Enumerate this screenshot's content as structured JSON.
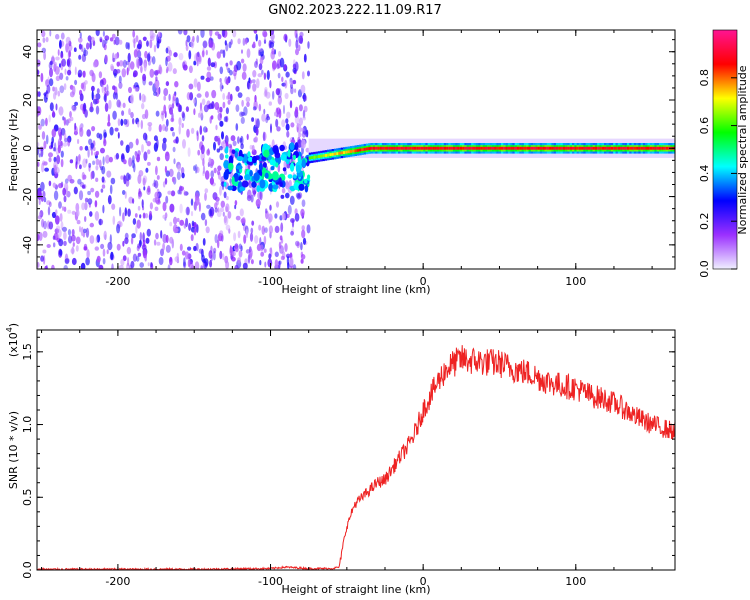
{
  "title": "GN02.2023.222.11.09.R17",
  "chart_data": [
    {
      "type": "heatmap",
      "xlabel": "Height of straight line (km)",
      "ylabel": "Frequency (Hz)",
      "xlim": [
        -253,
        165
      ],
      "ylim": [
        -50,
        49
      ],
      "xticks": [
        -200,
        -100,
        0,
        100
      ],
      "xtick_labels": [
        "-200",
        "-100",
        "0",
        "100"
      ],
      "yticks": [
        -40,
        -20,
        0,
        20,
        40
      ],
      "ytick_labels": [
        "-40",
        "-20",
        "0",
        "20",
        "40"
      ],
      "colorbar": {
        "label": "Normalized spectral amplitude",
        "range": [
          0,
          1
        ],
        "ticks": [
          0.0,
          0.2,
          0.4,
          0.6,
          0.8
        ],
        "tick_labels": [
          "0.0",
          "0.2",
          "0.4",
          "0.6",
          "0.8"
        ],
        "colors": [
          "#f0f0ff",
          "#9b30ff",
          "#0000ff",
          "#00ffff",
          "#00ff00",
          "#ffff00",
          "#ff0000",
          "#ff1493"
        ]
      },
      "features": [
        {
          "region": "noise",
          "x_range": [
            -253,
            -75
          ],
          "freq_range": [
            -50,
            49
          ],
          "amplitude": 0.1
        },
        {
          "region": "onset",
          "x_range": [
            -130,
            -75
          ],
          "freq_center": -8,
          "amplitude": 0.35
        },
        {
          "region": "signal-line",
          "x_range": [
            -75,
            165
          ],
          "freq_center": 0,
          "amplitude": 0.85
        }
      ],
      "grid": false
    },
    {
      "type": "line",
      "xlabel": "Height of straight line (km)",
      "ylabel": "SNR (10 * v/v)",
      "y_multiplier": "(x10",
      "y_multiplier_exp": "4",
      "xlim": [
        -253,
        165
      ],
      "ylim": [
        0,
        1.65
      ],
      "xticks": [
        -200,
        -100,
        0,
        100
      ],
      "xtick_labels": [
        "-200",
        "-100",
        "0",
        "100"
      ],
      "yticks": [
        0.0,
        0.5,
        1.0,
        1.5
      ],
      "ytick_labels": [
        "0.0",
        "0.5",
        "1.0",
        "1.5"
      ],
      "series": [
        {
          "color": "#ee2222",
          "x": [
            -253,
            -200,
            -150,
            -100,
            -90,
            -75,
            -60,
            -55,
            -52,
            -50,
            -45,
            -40,
            -35,
            -30,
            -25,
            -20,
            -15,
            -10,
            -5,
            0,
            5,
            10,
            15,
            20,
            25,
            30,
            40,
            50,
            60,
            70,
            80,
            90,
            100,
            110,
            120,
            130,
            140,
            150,
            165
          ],
          "y": [
            0.005,
            0.005,
            0.005,
            0.01,
            0.02,
            0.01,
            0.01,
            0.02,
            0.2,
            0.3,
            0.45,
            0.5,
            0.55,
            0.6,
            0.62,
            0.7,
            0.78,
            0.85,
            0.95,
            1.1,
            1.2,
            1.3,
            1.38,
            1.42,
            1.45,
            1.44,
            1.43,
            1.42,
            1.38,
            1.35,
            1.3,
            1.27,
            1.25,
            1.2,
            1.17,
            1.12,
            1.05,
            1.0,
            0.95
          ]
        }
      ],
      "grid": false
    }
  ]
}
